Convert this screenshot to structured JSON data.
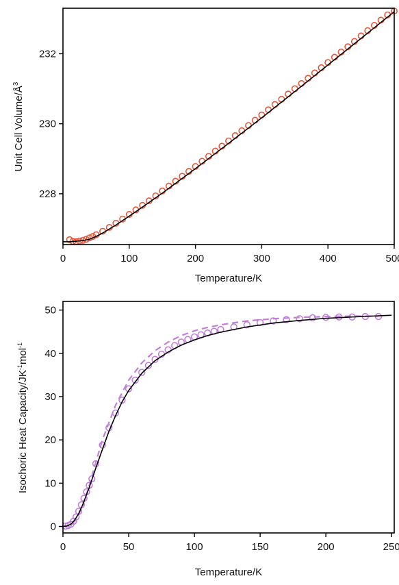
{
  "chart_data": [
    {
      "type": "line",
      "xlabel": "Temperature/K",
      "ylabel": "Unit Cell Volume/Å",
      "ylabel_sup": "3",
      "xlim": [
        0,
        500
      ],
      "ylim": [
        226.55,
        233.3
      ],
      "xticks": [
        0,
        100,
        200,
        300,
        400,
        500
      ],
      "yticks": [
        228,
        230,
        232
      ],
      "grid": false,
      "colors": {
        "points": "#e8553a",
        "fit": "#000000"
      },
      "series": [
        {
          "style": "open-circles",
          "x": [
            10,
            15,
            20,
            25,
            30,
            35,
            40,
            45,
            50,
            60,
            70,
            80,
            90,
            100,
            110,
            120,
            130,
            140,
            150,
            160,
            170,
            180,
            190,
            200,
            210,
            220,
            230,
            240,
            250,
            260,
            270,
            280,
            290,
            300,
            310,
            320,
            330,
            340,
            350,
            360,
            370,
            380,
            390,
            400,
            410,
            420,
            430,
            440,
            450,
            460,
            470,
            480,
            490,
            500
          ],
          "y": [
            226.69,
            226.64,
            226.63,
            226.65,
            226.67,
            226.7,
            226.74,
            226.78,
            226.83,
            226.93,
            227.04,
            227.16,
            227.28,
            227.41,
            227.54,
            227.67,
            227.8,
            227.94,
            228.08,
            228.22,
            228.36,
            228.5,
            228.64,
            228.78,
            228.93,
            229.07,
            229.22,
            229.36,
            229.51,
            229.66,
            229.8,
            229.95,
            230.1,
            230.25,
            230.4,
            230.55,
            230.7,
            230.85,
            231.0,
            231.15,
            231.3,
            231.45,
            231.6,
            231.75,
            231.9,
            232.05,
            232.2,
            232.35,
            232.51,
            232.66,
            232.81,
            232.96,
            233.11,
            233.22
          ]
        },
        {
          "style": "solid-line",
          "x": [
            0,
            10,
            20,
            30,
            40,
            50,
            60,
            80,
            100,
            120,
            150,
            200,
            250,
            300,
            350,
            400,
            450,
            500
          ],
          "y": [
            226.63,
            226.63,
            226.645,
            226.665,
            226.7,
            226.78,
            226.88,
            227.11,
            227.36,
            227.62,
            228.02,
            228.72,
            229.44,
            230.17,
            230.92,
            231.68,
            232.44,
            233.2
          ]
        }
      ]
    },
    {
      "type": "line",
      "xlabel": "Temperature/K",
      "ylabel": "Isochoric Heat Capacity/JK",
      "ylabel_sup1": "-1",
      "ylabel_mid": "mol",
      "ylabel_sup2": "-1",
      "xlim": [
        0,
        252
      ],
      "ylim": [
        -1.5,
        52
      ],
      "xticks": [
        0,
        50,
        100,
        150,
        200,
        250
      ],
      "yticks": [
        0,
        10,
        20,
        30,
        40,
        50
      ],
      "grid": false,
      "colors": {
        "points": "#c27fd9",
        "dashed": "#c27fd9",
        "fit": "#000000"
      },
      "series": [
        {
          "style": "open-circles",
          "x": [
            2,
            4,
            6,
            8,
            10,
            12,
            14,
            16,
            18,
            20,
            22,
            25,
            30,
            35,
            40,
            45,
            50,
            55,
            60,
            65,
            70,
            75,
            80,
            85,
            90,
            95,
            100,
            105,
            110,
            115,
            120,
            130,
            140,
            150,
            160,
            170,
            180,
            190,
            200,
            210,
            220,
            230,
            240
          ],
          "y": [
            0.1,
            0.2,
            0.5,
            1.2,
            2.2,
            3.5,
            5.0,
            6.5,
            8.0,
            9.5,
            11.0,
            14.5,
            18.8,
            22.8,
            26.2,
            29.2,
            31.8,
            33.8,
            35.6,
            37.2,
            38.6,
            39.8,
            40.8,
            41.8,
            42.6,
            43.2,
            43.8,
            44.3,
            44.7,
            45.1,
            45.5,
            46.1,
            46.6,
            47.1,
            47.5,
            47.8,
            48.0,
            48.2,
            48.3,
            48.4,
            48.4,
            48.5,
            48.5
          ]
        },
        {
          "style": "dashed-line",
          "x": [
            0,
            5,
            10,
            15,
            20,
            25,
            30,
            40,
            50,
            60,
            70,
            80,
            90,
            100,
            110,
            120,
            140,
            160,
            180,
            200,
            220,
            240
          ],
          "y": [
            0,
            0.2,
            1.5,
            4.8,
            9.5,
            14.8,
            20.0,
            28.0,
            33.8,
            37.8,
            40.6,
            42.6,
            44.1,
            45.2,
            46.0,
            46.6,
            47.5,
            48.0,
            48.3,
            48.5,
            48.6,
            48.6
          ]
        },
        {
          "style": "solid-line",
          "x": [
            0,
            3,
            6,
            9,
            12,
            15,
            20,
            25,
            30,
            35,
            40,
            45,
            50,
            60,
            70,
            80,
            90,
            100,
            110,
            120,
            140,
            160,
            180,
            200,
            220,
            250
          ],
          "y": [
            0,
            0.1,
            0.5,
            1.5,
            3.0,
            5.0,
            9.0,
            13.5,
            17.8,
            22.0,
            25.6,
            28.8,
            31.4,
            35.4,
            38.3,
            40.3,
            41.9,
            43.1,
            44.1,
            44.9,
            46.1,
            47.0,
            47.6,
            48.1,
            48.4,
            48.8
          ]
        }
      ]
    }
  ]
}
